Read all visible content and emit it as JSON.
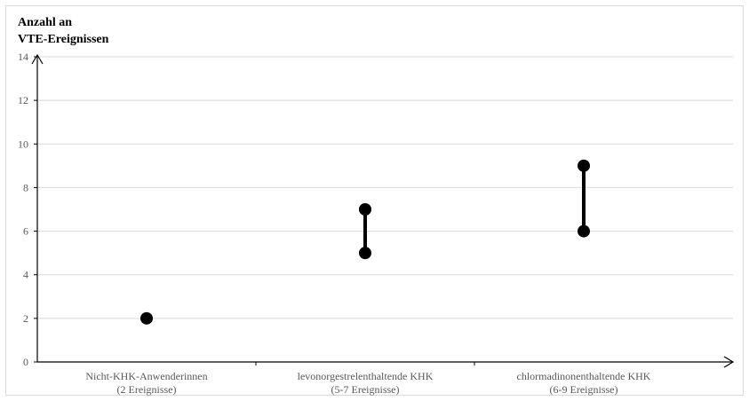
{
  "chart_data": {
    "type": "scatter",
    "title": "",
    "ylabel_lines": [
      "Anzahl an",
      "VTE-Ereignissen"
    ],
    "xlabel": "",
    "ylim": [
      0,
      14
    ],
    "yticks": [
      0,
      2,
      4,
      6,
      8,
      10,
      12,
      14
    ],
    "grid": true,
    "categories": [
      {
        "line1": "Nicht-KHK-Anwenderinnen",
        "line2": "(2 Ereignisse)",
        "min": 2,
        "max": 2
      },
      {
        "line1": "levonorgestrelenthaltende KHK",
        "line2": "(5-7 Ereignisse)",
        "min": 5,
        "max": 7
      },
      {
        "line1": "chlormadinonenthaltende KHK",
        "line2": "(6-9 Ereignisse)",
        "min": 6,
        "max": 9
      }
    ],
    "colors": {
      "points": "#000000",
      "grid": "#d9d9d9",
      "axis": "#000000",
      "tick_text": "#595959"
    }
  }
}
